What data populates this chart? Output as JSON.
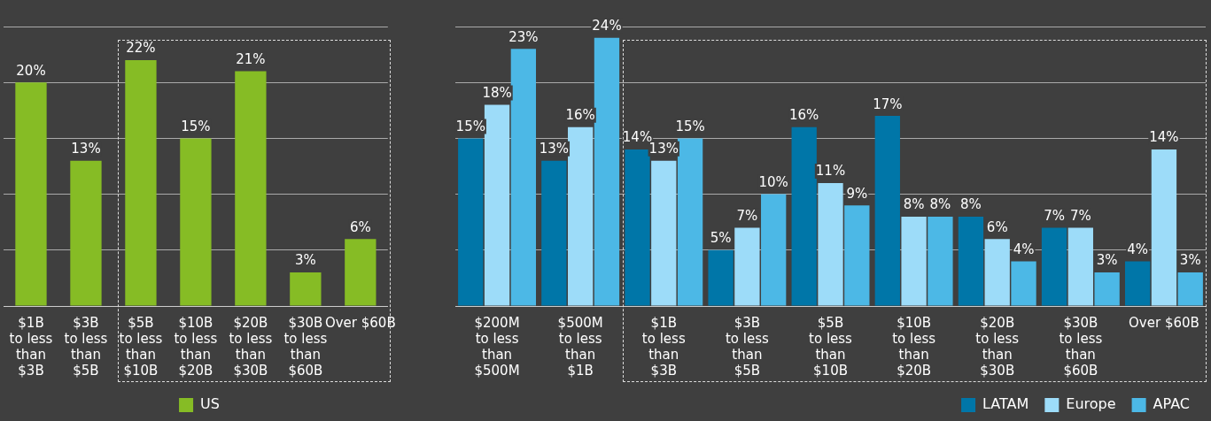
{
  "chart_data": [
    {
      "type": "bar",
      "categories": [
        "$1B to less than $3B",
        "$3B to less than $5B",
        "$5B to less than $10B",
        "$10B to less than $20B",
        "$20B to less than $30B",
        "$30B to less than $60B",
        "Over $60B"
      ],
      "series": [
        {
          "name": "US",
          "color": "#86bc25",
          "values": [
            20,
            13,
            22,
            15,
            21,
            3,
            6
          ],
          "value_labels": [
            "20%",
            "13%",
            "22%",
            "15%",
            "21%",
            "3%",
            "6%"
          ]
        }
      ],
      "grid": "y",
      "tick_labels": "x",
      "legend": "bottom"
    },
    {
      "type": "bar",
      "categories": [
        "$200M to less than $500M",
        "$500M to less than $1B",
        "$1B to less than $3B",
        "$3B to less than $5B",
        "$5B to less than $10B",
        "$10B to less than $20B",
        "$20B to less than $30B",
        "$30B to less than $60B",
        "Over $60B"
      ],
      "series": [
        {
          "name": "LATAM",
          "color": "#0076a8",
          "values": [
            15,
            13,
            14,
            5,
            16,
            17,
            8,
            7,
            4
          ],
          "value_labels": [
            "15%",
            "13%",
            "14%",
            "5%",
            "16%",
            "17%",
            "8%",
            "7%",
            "4%"
          ]
        },
        {
          "name": "Europe",
          "color": "#9ddcf9",
          "values": [
            18,
            16,
            13,
            7,
            11,
            8,
            6,
            7,
            14
          ],
          "value_labels": [
            "18%",
            "16%",
            "13%",
            "7%",
            "11%",
            "8%",
            "6%",
            "7%",
            "14%"
          ]
        },
        {
          "name": "APAC",
          "color": "#4cb8e6",
          "values": [
            23,
            24,
            15,
            10,
            9,
            8,
            4,
            3,
            3
          ],
          "value_labels": [
            "23%",
            "24%",
            "15%",
            "10%",
            "9%",
            "8%",
            "4%",
            "3%",
            "3%"
          ]
        }
      ],
      "grid": "y",
      "tick_labels": "x",
      "legend": "bottom"
    }
  ]
}
